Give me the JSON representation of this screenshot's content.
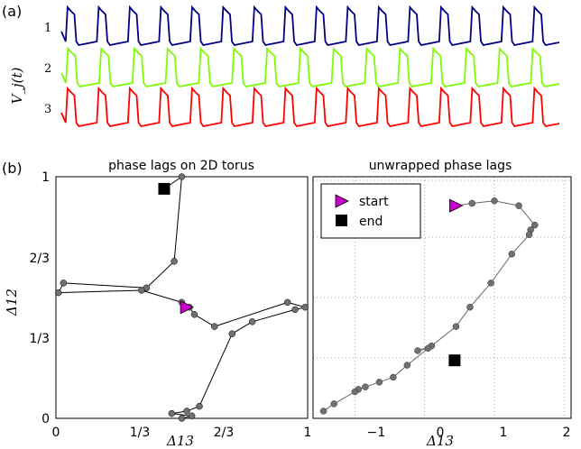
{
  "panel_labels": {
    "a": "(a)",
    "b": "(b)"
  },
  "chart_data": [
    {
      "type": "line",
      "panel": "(a)",
      "ylabel": "V_j(t)",
      "series": [
        {
          "name": "1",
          "color": "#000080",
          "spikes": 16
        },
        {
          "name": "2",
          "color": "#7cfc00",
          "spikes": 15
        },
        {
          "name": "3",
          "color": "#ff0000",
          "spikes": 16
        }
      ]
    },
    {
      "type": "scatter",
      "title": "phase lags on 2D torus",
      "xlabel": "Δ13",
      "ylabel": "Δ12",
      "xlim": [
        0,
        1
      ],
      "ylim": [
        0,
        1
      ],
      "xticks": [
        "0",
        "1/3",
        "2/3",
        "1"
      ],
      "yticks": [
        "0",
        "1/3",
        "2/3",
        "1"
      ],
      "grid": false,
      "start": {
        "x": 0.52,
        "y": 0.46
      },
      "end": {
        "x": 0.43,
        "y": 0.95
      },
      "points": [
        [
          0.43,
          0.95
        ],
        [
          0.5,
          1.0
        ],
        [
          0.47,
          0.65
        ],
        [
          0.36,
          0.54
        ],
        [
          0.03,
          0.56
        ],
        [
          0.01,
          0.52
        ],
        [
          0.34,
          0.53
        ],
        [
          0.5,
          0.48
        ],
        [
          0.53,
          0.46
        ],
        [
          0.55,
          0.43
        ],
        [
          0.63,
          0.38
        ],
        [
          0.92,
          0.48
        ],
        [
          0.99,
          0.46
        ],
        [
          0.95,
          0.45
        ],
        [
          0.78,
          0.4
        ],
        [
          0.7,
          0.35
        ],
        [
          0.57,
          0.05
        ],
        [
          0.52,
          0.03
        ],
        [
          0.46,
          0.02
        ],
        [
          0.54,
          0.01
        ],
        [
          0.5,
          0.0
        ]
      ]
    },
    {
      "type": "scatter",
      "title": "unwrapped phase lags",
      "xlabel": "Δ13",
      "xlim": [
        -1.6,
        2.1
      ],
      "xticks": [
        "−1",
        "0",
        "1",
        "2"
      ],
      "grid": true,
      "legend": [
        {
          "label": "start",
          "marker": "triangle",
          "color": "#cc00cc"
        },
        {
          "label": "end",
          "marker": "square",
          "color": "#000000"
        }
      ],
      "legend_position": "top-left",
      "start": {
        "x": 0.45,
        "y": 0.88
      },
      "end": {
        "x": 0.43,
        "y": 0.24
      },
      "points": [
        [
          0.45,
          0.88
        ],
        [
          0.68,
          0.89
        ],
        [
          1.0,
          0.9
        ],
        [
          1.35,
          0.88
        ],
        [
          1.58,
          0.8
        ],
        [
          1.52,
          0.78
        ],
        [
          1.5,
          0.76
        ],
        [
          1.25,
          0.68
        ],
        [
          0.95,
          0.56
        ],
        [
          0.65,
          0.46
        ],
        [
          0.45,
          0.38
        ],
        [
          0.1,
          0.3
        ],
        [
          -0.1,
          0.28
        ],
        [
          0.05,
          0.29
        ],
        [
          -0.25,
          0.22
        ],
        [
          -0.45,
          0.17
        ],
        [
          -0.65,
          0.15
        ],
        [
          -0.85,
          0.13
        ],
        [
          -0.95,
          0.12
        ],
        [
          -1.0,
          0.11
        ],
        [
          -1.3,
          0.06
        ],
        [
          -1.45,
          0.03
        ]
      ]
    }
  ],
  "colors": {
    "start": "#cc00cc",
    "end": "#000000",
    "point": "#707070"
  }
}
